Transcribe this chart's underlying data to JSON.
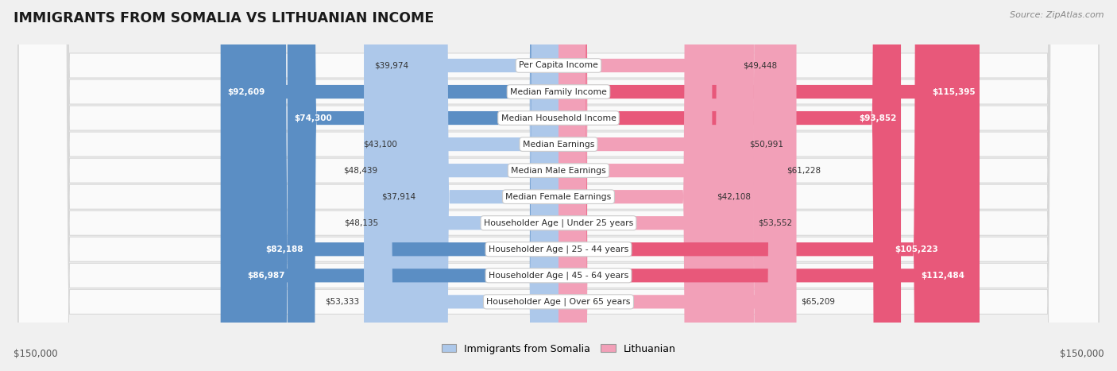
{
  "title": "IMMIGRANTS FROM SOMALIA VS LITHUANIAN INCOME",
  "source": "Source: ZipAtlas.com",
  "categories": [
    "Per Capita Income",
    "Median Family Income",
    "Median Household Income",
    "Median Earnings",
    "Median Male Earnings",
    "Median Female Earnings",
    "Householder Age | Under 25 years",
    "Householder Age | 25 - 44 years",
    "Householder Age | 45 - 64 years",
    "Householder Age | Over 65 years"
  ],
  "somalia_values": [
    39974,
    92609,
    74300,
    43100,
    48439,
    37914,
    48135,
    82188,
    86987,
    53333
  ],
  "lithuanian_values": [
    49448,
    115395,
    93852,
    50991,
    61228,
    42108,
    53552,
    105223,
    112484,
    65209
  ],
  "somalia_labels": [
    "$39,974",
    "$92,609",
    "$74,300",
    "$43,100",
    "$48,439",
    "$37,914",
    "$48,135",
    "$82,188",
    "$86,987",
    "$53,333"
  ],
  "lithuanian_labels": [
    "$49,448",
    "$115,395",
    "$93,852",
    "$50,991",
    "$61,228",
    "$42,108",
    "$53,552",
    "$105,223",
    "$112,484",
    "$65,209"
  ],
  "somalia_color_light": "#adc8ea",
  "somalia_color_dark": "#5b8ec4",
  "lithuanian_color_light": "#f2a0b8",
  "lithuanian_color_dark": "#e8587a",
  "max_value": 150000,
  "axis_label_left": "$150,000",
  "axis_label_right": "$150,000",
  "somalia_large_threshold": 68000,
  "lithuanian_large_threshold": 90000,
  "background_color": "#f0f0f0",
  "row_bg_color": "#fafafa",
  "legend_somalia": "Immigrants from Somalia",
  "legend_lithuanian": "Lithuanian"
}
